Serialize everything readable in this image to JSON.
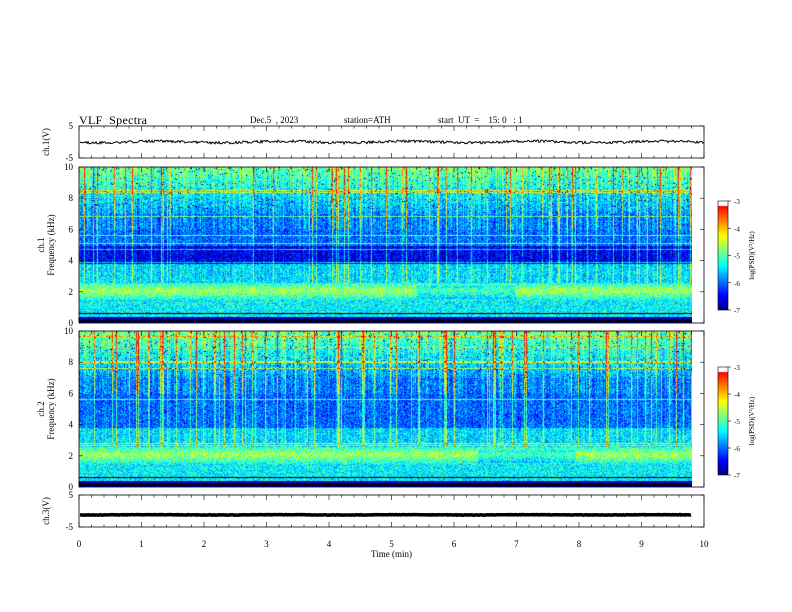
{
  "header": {
    "title": "VLF  Spectra",
    "date": "Dec.5  , 2023",
    "station": "station=ATH",
    "start": "start  UT  =    15: 0   : 1"
  },
  "chart_data": [
    {
      "type": "line",
      "panel": "ch1-waveform",
      "ylabel": "ch.1(V)",
      "ylim": [
        -5,
        5
      ],
      "yticks": [
        "5",
        "-5"
      ],
      "x_range": [
        0,
        10
      ],
      "baseline": 0,
      "amplitude": 0.8,
      "color": "#000000"
    },
    {
      "type": "heatmap",
      "panel": "ch1-spectrogram",
      "ylabel": "ch.1\nFrequency  (kHz)",
      "ylabel_lines": [
        "ch.1",
        "Frequency  (kHz)"
      ],
      "ylim": [
        0,
        10
      ],
      "yticks": [
        "0",
        "2",
        "4",
        "6",
        "8",
        "10"
      ],
      "x_range": [
        0,
        9.8
      ],
      "colorbar": {
        "label": "log(PSD)(V²/Hz)",
        "range": [
          -7,
          -3
        ],
        "ticks": [
          "-3",
          "-4",
          "-5",
          "-6",
          "-7"
        ]
      }
    },
    {
      "type": "heatmap",
      "panel": "ch2-spectrogram",
      "ylabel": "ch.2\nFrequency  (kHz)",
      "ylabel_lines": [
        "ch.2",
        "Frequency  (kHz)"
      ],
      "ylim": [
        0,
        10
      ],
      "yticks": [
        "0",
        "2",
        "4",
        "6",
        "8",
        "10"
      ],
      "x_range": [
        0,
        9.8
      ],
      "colorbar": {
        "label": "log(PSD)(V²/Hz)",
        "range": [
          -7,
          -3
        ],
        "ticks": [
          "-3",
          "-4",
          "-5",
          "-6",
          "-7"
        ]
      }
    },
    {
      "type": "line",
      "panel": "ch3-waveform",
      "ylabel": "ch.3(V)",
      "ylim": [
        -5,
        5
      ],
      "yticks": [
        "5",
        "-5"
      ],
      "x_range": [
        0,
        9.8
      ],
      "baseline": -1.2,
      "amplitude": 0.15,
      "color": "#000000"
    }
  ],
  "xaxis": {
    "label": "Time  (min)",
    "range": [
      0,
      10
    ],
    "ticks": [
      "0",
      "1",
      "2",
      "3",
      "4",
      "5",
      "6",
      "7",
      "8",
      "9",
      "10"
    ]
  },
  "colors": {
    "scale": [
      "#00007f",
      "#0000ff",
      "#007fff",
      "#00ffff",
      "#7fff7f",
      "#ffff00",
      "#ff7f00",
      "#ff0000",
      "#ffffff"
    ]
  }
}
